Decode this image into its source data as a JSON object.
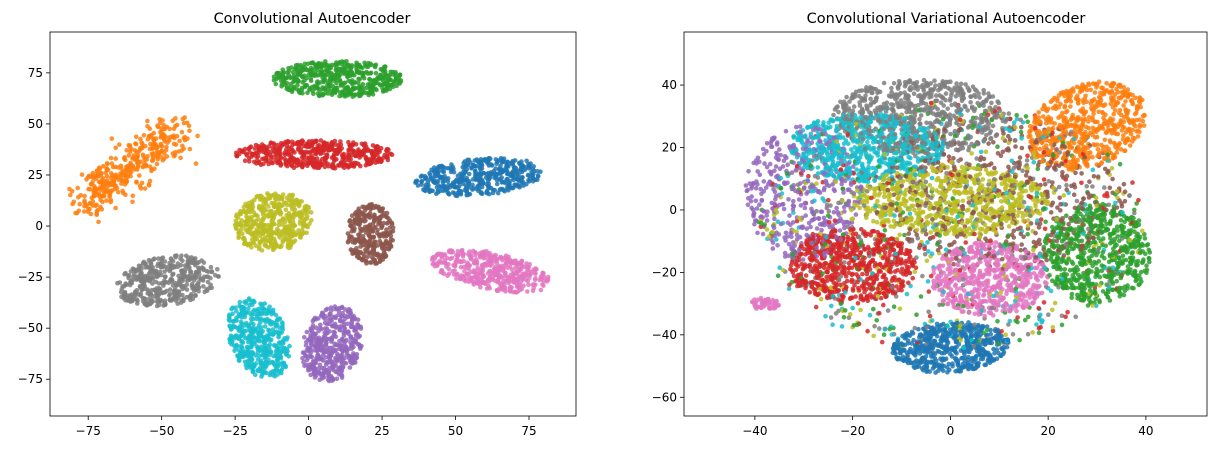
{
  "chart_data": [
    {
      "type": "scatter",
      "title": "Convolutional Autoencoder",
      "xlabel": "",
      "ylabel": "",
      "xlim": [
        -88,
        91
      ],
      "ylim": [
        -93,
        95
      ],
      "xticks": [
        -75,
        -50,
        -25,
        0,
        25,
        50,
        75
      ],
      "yticks": [
        -75,
        -50,
        -25,
        0,
        25,
        50,
        75
      ],
      "xtick_labels": [
        "−75",
        "−50",
        "−25",
        "0",
        "25",
        "50",
        "75"
      ],
      "ytick_labels": [
        "−75",
        "−50",
        "−25",
        "0",
        "25",
        "50",
        "75"
      ],
      "grid": false,
      "legend": "none",
      "clusters": [
        {
          "color": "#ff7f0e",
          "shape": "line",
          "x0": -76,
          "y0": 12,
          "x1": -45,
          "y1": 47,
          "spread": 5.5,
          "count": 380
        },
        {
          "color": "#2ca02c",
          "shape": "blob",
          "cx": 10,
          "cy": 72,
          "rx": 22,
          "ry": 9,
          "angle": 0,
          "count": 480
        },
        {
          "color": "#d62728",
          "shape": "blob",
          "cx": 2,
          "cy": 35,
          "rx": 27,
          "ry": 7,
          "angle": 0,
          "count": 480
        },
        {
          "color": "#1f77b4",
          "shape": "blob",
          "cx": 58,
          "cy": 24,
          "rx": 22,
          "ry": 9,
          "angle": 8,
          "count": 430
        },
        {
          "color": "#bcbd22",
          "shape": "blob",
          "cx": -12,
          "cy": 2,
          "rx": 13,
          "ry": 15,
          "angle": -20,
          "count": 430
        },
        {
          "color": "#8c564b",
          "shape": "blob",
          "cx": 21,
          "cy": -4,
          "rx": 8,
          "ry": 15,
          "angle": 0,
          "count": 300
        },
        {
          "color": "#e377c2",
          "shape": "blob",
          "cx": 62,
          "cy": -22,
          "rx": 21,
          "ry": 9,
          "angle": -18,
          "count": 420
        },
        {
          "color": "#7f7f7f",
          "shape": "blob",
          "cx": -48,
          "cy": -27,
          "rx": 18,
          "ry": 12,
          "angle": 18,
          "count": 420
        },
        {
          "color": "#17becf",
          "shape": "blob",
          "cx": -17,
          "cy": -55,
          "rx": 10,
          "ry": 20,
          "angle": 12,
          "count": 440
        },
        {
          "color": "#9467bd",
          "shape": "blob",
          "cx": 8,
          "cy": -58,
          "rx": 10,
          "ry": 19,
          "angle": -8,
          "count": 420
        }
      ]
    },
    {
      "type": "scatter",
      "title": "Convolutional Variational Autoencoder",
      "xlabel": "",
      "ylabel": "",
      "xlim": [
        -54.5,
        52.5
      ],
      "ylim": [
        -66,
        57
      ],
      "xticks": [
        -40,
        -20,
        0,
        20,
        40
      ],
      "yticks": [
        -60,
        -40,
        -20,
        0,
        20,
        40
      ],
      "xtick_labels": [
        "−40",
        "−20",
        "0",
        "20",
        "40"
      ],
      "ytick_labels": [
        "−60",
        "−40",
        "−20",
        "0",
        "20",
        "40"
      ],
      "grid": false,
      "legend": "none",
      "clusters": [
        {
          "color": "#ff7f0e",
          "shape": "blob",
          "cx": 28,
          "cy": 27,
          "rx": 11,
          "ry": 15,
          "angle": -30,
          "count": 600
        },
        {
          "color": "#7f7f7f",
          "shape": "blob",
          "cx": -6,
          "cy": 30,
          "rx": 18,
          "ry": 12,
          "angle": 0,
          "count": 650
        },
        {
          "color": "#17becf",
          "shape": "blob",
          "cx": -17,
          "cy": 20,
          "rx": 16,
          "ry": 11,
          "angle": 0,
          "count": 650
        },
        {
          "color": "#bcbd22",
          "shape": "blob",
          "cx": 0,
          "cy": 3,
          "rx": 20,
          "ry": 11,
          "angle": 0,
          "count": 650
        },
        {
          "color": "#d62728",
          "shape": "blob",
          "cx": -20,
          "cy": -18,
          "rx": 13,
          "ry": 12,
          "angle": 0,
          "count": 650
        },
        {
          "color": "#2ca02c",
          "shape": "blob",
          "cx": 30,
          "cy": -14,
          "rx": 11,
          "ry": 16,
          "angle": 0,
          "count": 600
        },
        {
          "color": "#e377c2",
          "shape": "blob",
          "cx": 8,
          "cy": -22,
          "rx": 12,
          "ry": 12,
          "angle": 0,
          "count": 550
        },
        {
          "color": "#1f77b4",
          "shape": "blob",
          "cx": 0,
          "cy": -44,
          "rx": 12,
          "ry": 8,
          "angle": 10,
          "count": 550
        },
        {
          "color": "#9467bd",
          "shape": "blob",
          "cx": -30,
          "cy": 5,
          "rx": 12,
          "ry": 22,
          "angle": 0,
          "count": 400
        },
        {
          "color": "#8c564b",
          "shape": "blob",
          "cx": 10,
          "cy": 5,
          "rx": 26,
          "ry": 24,
          "angle": 0,
          "count": 450
        },
        {
          "color": "#e377c2",
          "shape": "blob",
          "cx": -38,
          "cy": -30,
          "rx": 3,
          "ry": 2,
          "angle": 0,
          "count": 50
        },
        {
          "color": "#7f7f7f",
          "shape": "blob",
          "cx": 0,
          "cy": -5,
          "rx": 38,
          "ry": 40,
          "angle": 0,
          "count": 250
        },
        {
          "color": "#2ca02c",
          "shape": "blob",
          "cx": 0,
          "cy": -5,
          "rx": 40,
          "ry": 40,
          "angle": 0,
          "count": 200
        },
        {
          "color": "#bcbd22",
          "shape": "blob",
          "cx": 0,
          "cy": -5,
          "rx": 40,
          "ry": 40,
          "angle": 0,
          "count": 200
        },
        {
          "color": "#17becf",
          "shape": "blob",
          "cx": 0,
          "cy": -5,
          "rx": 40,
          "ry": 40,
          "angle": 0,
          "count": 200
        },
        {
          "color": "#d62728",
          "shape": "blob",
          "cx": 0,
          "cy": -5,
          "rx": 40,
          "ry": 40,
          "angle": 0,
          "count": 150
        }
      ]
    }
  ]
}
